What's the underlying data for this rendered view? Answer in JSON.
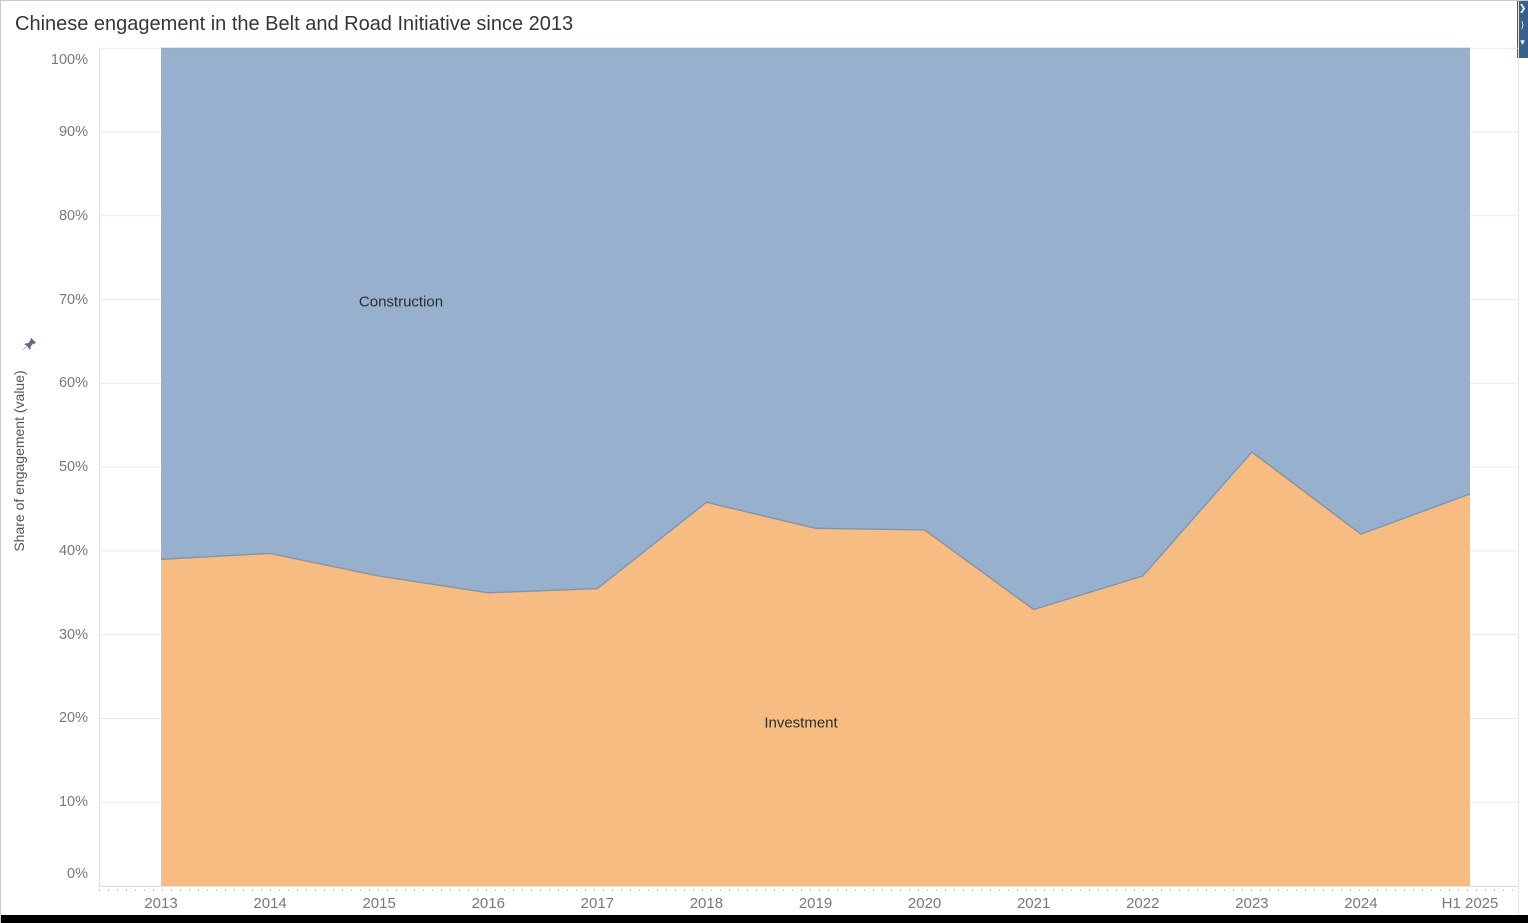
{
  "header": {
    "title": "Chinese engagement in the Belt and Road Initiative since 2013"
  },
  "side_strip": {
    "background": "#36618E",
    "icons": [
      {
        "name": "chevron-right-icon",
        "glyph": "❯"
      },
      {
        "name": "chevron-partial-icon",
        "glyph": "⟩"
      },
      {
        "name": "caret-down-icon",
        "glyph": "▾"
      }
    ]
  },
  "y_axis": {
    "title": "Share of engagement (value)",
    "tick_labels": [
      "0%",
      "10%",
      "20%",
      "30%",
      "40%",
      "50%",
      "60%",
      "70%",
      "80%",
      "90%",
      "100%"
    ]
  },
  "x_axis": {
    "tick_labels": [
      "2013",
      "2014",
      "2015",
      "2016",
      "2017",
      "2018",
      "2019",
      "2020",
      "2021",
      "2022",
      "2023",
      "2024",
      "H1 2025"
    ]
  },
  "chart_data": {
    "type": "area",
    "stacked": true,
    "normalized_to_100_percent": true,
    "title": "Chinese engagement in the Belt and Road Initiative since 2013",
    "xlabel": "",
    "ylabel": "Share of engagement (value)",
    "ylim": [
      0,
      100
    ],
    "grid": "horizontal",
    "legend_position": "labels-on-areas",
    "categories": [
      "2013",
      "2014",
      "2015",
      "2016",
      "2017",
      "2018",
      "2019",
      "2020",
      "2021",
      "2022",
      "2023",
      "2024",
      "H1 2025"
    ],
    "series": [
      {
        "name": "Investment",
        "stack_position": "bottom",
        "fill": "#F6BA7E",
        "values": [
          39,
          39.7,
          37,
          35,
          35.5,
          45.8,
          42.7,
          42.5,
          33,
          37,
          51.8,
          42,
          46.8
        ]
      },
      {
        "name": "Construction",
        "stack_position": "top",
        "fill": "#93ADCC",
        "values": [
          61,
          60.3,
          63,
          65,
          64.5,
          54.2,
          57.3,
          57.5,
          67,
          63,
          48.2,
          58,
          53.2
        ]
      }
    ],
    "colors": {
      "investment_fill": "#F6BA7E",
      "construction_fill": "#93ADCC",
      "boundary_stroke": "#8494AA",
      "top_stroke": "#97A8BE",
      "gridline": "#e9e9e9",
      "axis_line": "#d6d6d6",
      "tick_text": "#787878",
      "strip_background": "#36618E"
    }
  }
}
